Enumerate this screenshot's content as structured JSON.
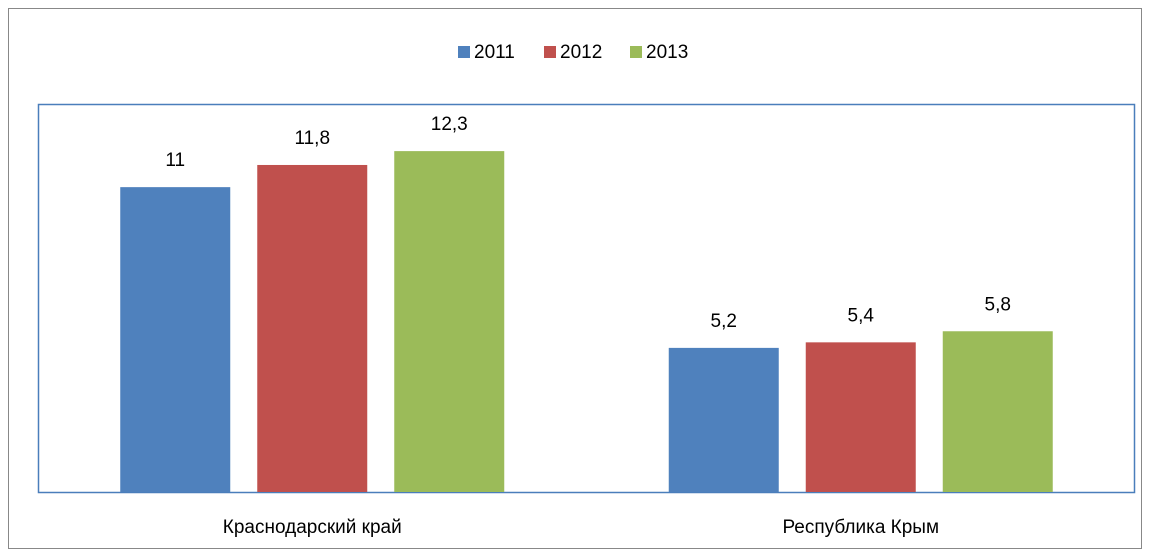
{
  "chart_data": {
    "type": "bar",
    "categories": [
      "Краснодарский край",
      "Республика Крым"
    ],
    "series": [
      {
        "name": "2011",
        "color": "#4f81bd",
        "values": [
          11,
          5.2
        ],
        "value_labels": [
          "11",
          "5,2"
        ]
      },
      {
        "name": "2012",
        "color": "#c0504d",
        "values": [
          11.8,
          5.4
        ],
        "value_labels": [
          "11,8",
          "5,4"
        ]
      },
      {
        "name": "2013",
        "color": "#9bbb59",
        "values": [
          12.3,
          5.8
        ],
        "value_labels": [
          "12,3",
          "5,8"
        ]
      }
    ],
    "ylim": [
      0,
      14
    ],
    "legend": "top"
  }
}
